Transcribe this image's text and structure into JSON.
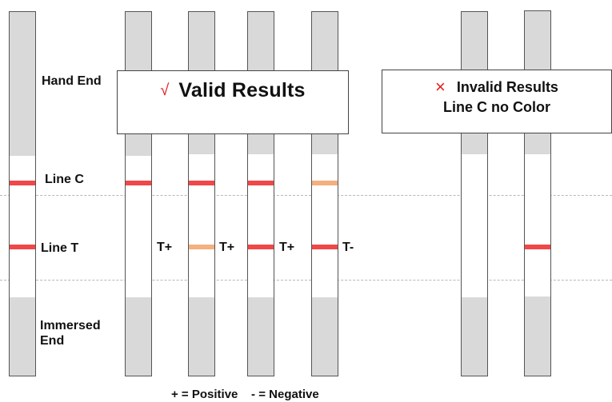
{
  "labels": {
    "hand_end": "Hand End",
    "line_c": "Line C",
    "line_t": "Line T",
    "immersed_end": [
      "Immersed",
      "End"
    ]
  },
  "valid_box": {
    "mark": "√",
    "title": "Valid Results"
  },
  "invalid_box": {
    "mark": "×",
    "title": "Invalid Results",
    "subtitle": "Line C no Color"
  },
  "strip_results": [
    {
      "name": "strip-valid-1",
      "c_color": "#f04848",
      "t_color": null,
      "result": "T+"
    },
    {
      "name": "strip-valid-2",
      "c_color": "#f04848",
      "t_color": "#f4b07e",
      "result": "T+"
    },
    {
      "name": "strip-valid-3",
      "c_color": "#f04848",
      "t_color": "#f04848",
      "result": "T+"
    },
    {
      "name": "strip-valid-4",
      "c_color": "#f4b07e",
      "t_color": "#f04848",
      "result": "T-"
    },
    {
      "name": "strip-invalid-1",
      "c_color": null,
      "t_color": null,
      "result": ""
    },
    {
      "name": "strip-invalid-2",
      "c_color": null,
      "t_color": "#f04848",
      "result": ""
    }
  ],
  "legend": "+ = Positive    - = Negative",
  "colors": {
    "strip_fill": "#d9d9d9",
    "strip_outline": "#555555",
    "line_red": "#f04848",
    "line_faint": "#f4b07e",
    "mark_red": "#e02020"
  }
}
